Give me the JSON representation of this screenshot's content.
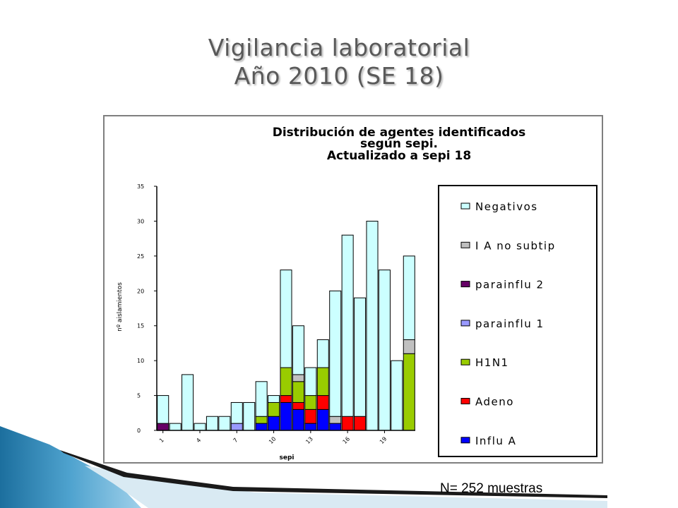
{
  "slide": {
    "title_line1": "Vigilancia laboratorial",
    "title_line2": "Año 2010 (SE 18)",
    "footnote": "N= 252 muestras"
  },
  "chart_data": {
    "type": "bar",
    "stacked": true,
    "title_lines": [
      "Distribución de agentes identificados",
      "según sepi.",
      "Actualizado a sepi 18"
    ],
    "xlabel": "sepi",
    "ylabel": "nº aislamientos",
    "ylim": [
      0,
      35
    ],
    "yticks": [
      0,
      5,
      10,
      15,
      20,
      25,
      30,
      35
    ],
    "categories": [
      1,
      2,
      3,
      4,
      5,
      6,
      7,
      8,
      9,
      10,
      11,
      12,
      13,
      14,
      15,
      16,
      17,
      18,
      19,
      20,
      21
    ],
    "xtick_labels": [
      "1",
      "4",
      "7",
      "10",
      "13",
      "16",
      "19"
    ],
    "xtick_categories": [
      1,
      4,
      7,
      10,
      13,
      16,
      19
    ],
    "grid": false,
    "legend_position": "right",
    "series": [
      {
        "name": "Influ A",
        "color": "#0000ff",
        "values": [
          0,
          0,
          0,
          0,
          0,
          0,
          0,
          0,
          1,
          2,
          4,
          3,
          1,
          3,
          1,
          0,
          0,
          0,
          0,
          0,
          0
        ]
      },
      {
        "name": "Adeno",
        "color": "#ff0000",
        "values": [
          0,
          0,
          0,
          0,
          0,
          0,
          0,
          0,
          0,
          0,
          1,
          1,
          2,
          2,
          0,
          2,
          2,
          0,
          0,
          0,
          0
        ]
      },
      {
        "name": "H1N1",
        "color": "#99cc00",
        "values": [
          0,
          0,
          0,
          0,
          0,
          0,
          0,
          0,
          1,
          2,
          4,
          3,
          2,
          4,
          0,
          0,
          0,
          0,
          0,
          0,
          11
        ]
      },
      {
        "name": "parainflu 1",
        "color": "#9999ff",
        "values": [
          0,
          0,
          0,
          0,
          0,
          0,
          1,
          0,
          0,
          0,
          0,
          0,
          0,
          0,
          0,
          0,
          0,
          0,
          0,
          0,
          0
        ]
      },
      {
        "name": "parainflu 2",
        "color": "#660066",
        "values": [
          1,
          0,
          0,
          0,
          0,
          0,
          0,
          0,
          0,
          0,
          0,
          0,
          0,
          0,
          0,
          0,
          0,
          0,
          0,
          0,
          0
        ]
      },
      {
        "name": "I A no subtip",
        "color": "#c0c0c0",
        "values": [
          0,
          0,
          0,
          0,
          0,
          0,
          0,
          0,
          0,
          0,
          0,
          1,
          0,
          0,
          1,
          0,
          0,
          0,
          0,
          0,
          2
        ]
      },
      {
        "name": "Negativos",
        "color": "#ccffff",
        "values": [
          4,
          1,
          8,
          1,
          2,
          2,
          3,
          4,
          5,
          1,
          14,
          7,
          4,
          4,
          18,
          26,
          17,
          30,
          23,
          10,
          12
        ]
      }
    ],
    "legend_order": [
      "Negativos",
      "I A no subtip",
      "parainflu 2",
      "parainflu 1",
      "H1N1",
      "Adeno",
      "Influ A"
    ]
  }
}
